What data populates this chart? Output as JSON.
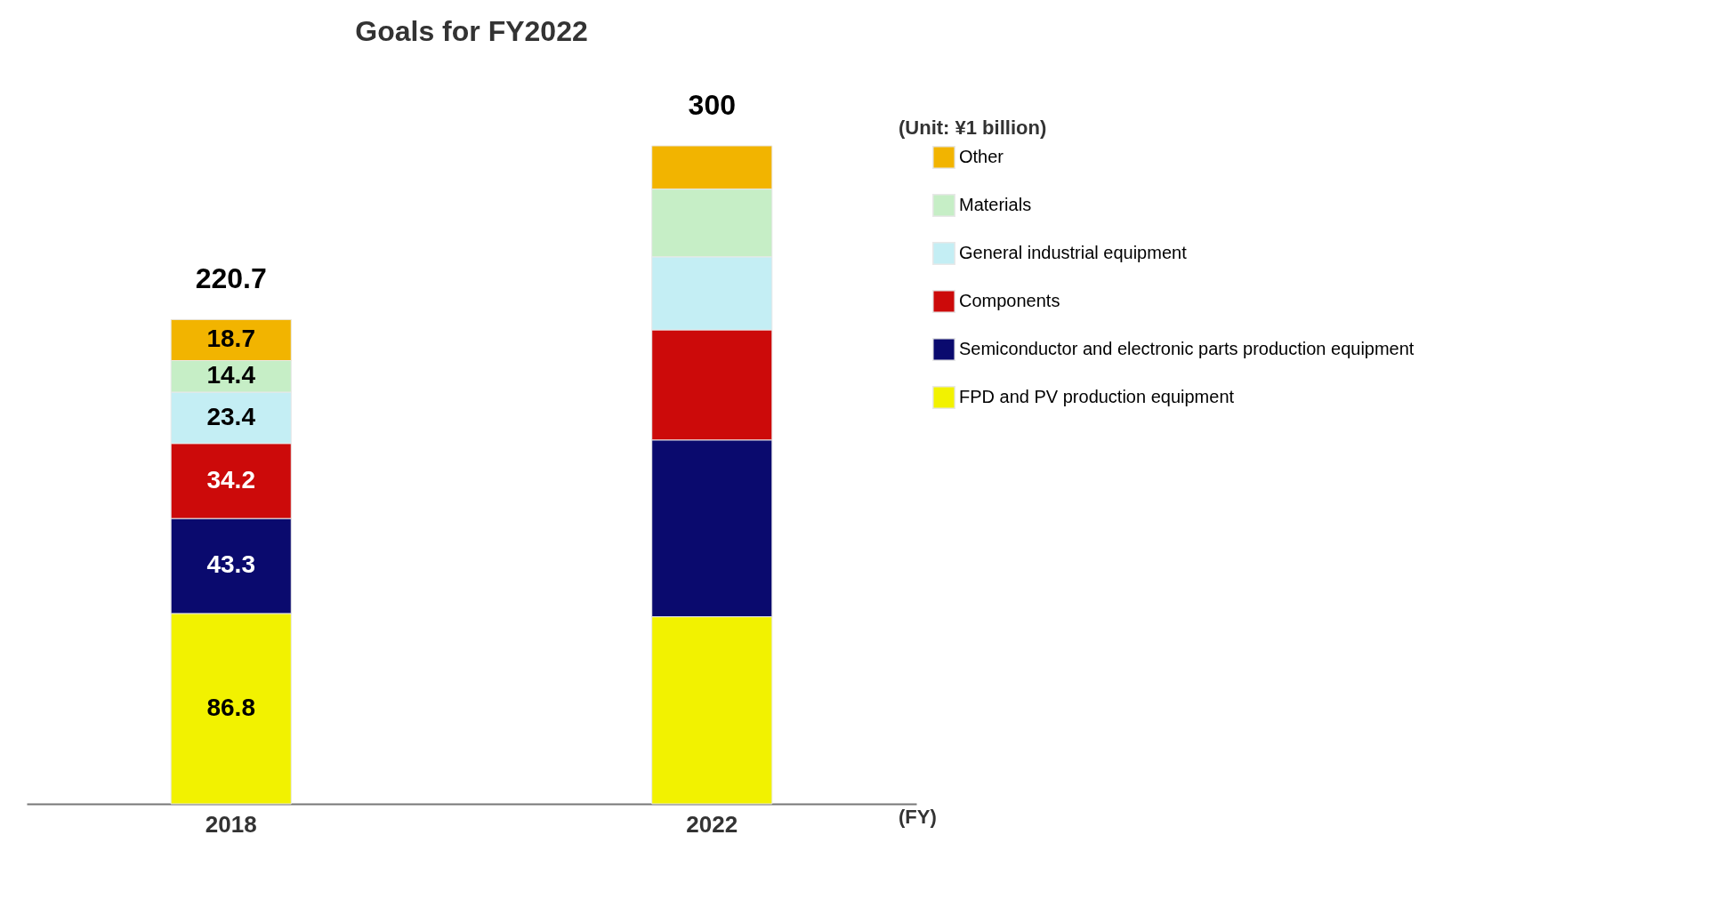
{
  "chart_data": {
    "type": "bar",
    "title": "Goals for FY2022",
    "stacked": true,
    "categories": [
      "2018",
      "2022"
    ],
    "series": [
      {
        "name": "FPD and PV production equipment",
        "color": "#f2f200",
        "values": [
          86.8,
          85.3
        ],
        "value_labels": [
          "86.8",
          null
        ]
      },
      {
        "name": "Semiconductor and electronic parts production equipment",
        "color": "#0a0a6e",
        "values": [
          43.3,
          80.6
        ],
        "value_labels": [
          "43.3",
          null
        ]
      },
      {
        "name": "Components",
        "color": "#cc0a0a",
        "values": [
          34.2,
          50.2
        ],
        "value_labels": [
          "34.2",
          null
        ]
      },
      {
        "name": "General industrial equipment",
        "color": "#c4eef4",
        "values": [
          23.4,
          33.3
        ],
        "value_labels": [
          "23.4",
          null
        ]
      },
      {
        "name": "Materials",
        "color": "#c6eec6",
        "values": [
          14.4,
          30.9
        ],
        "value_labels": [
          "14.4",
          null
        ]
      },
      {
        "name": "Other",
        "color": "#f2b400",
        "values": [
          18.7,
          19.7
        ],
        "value_labels": [
          "18.7",
          null
        ]
      }
    ],
    "totals": [
      "220.7",
      "300"
    ],
    "ylim": [
      0,
      300
    ],
    "tick_labels": "x",
    "legend": "right",
    "grid": false,
    "annotations": [
      "(Unit: ¥1 billion)",
      "(FY)"
    ]
  }
}
